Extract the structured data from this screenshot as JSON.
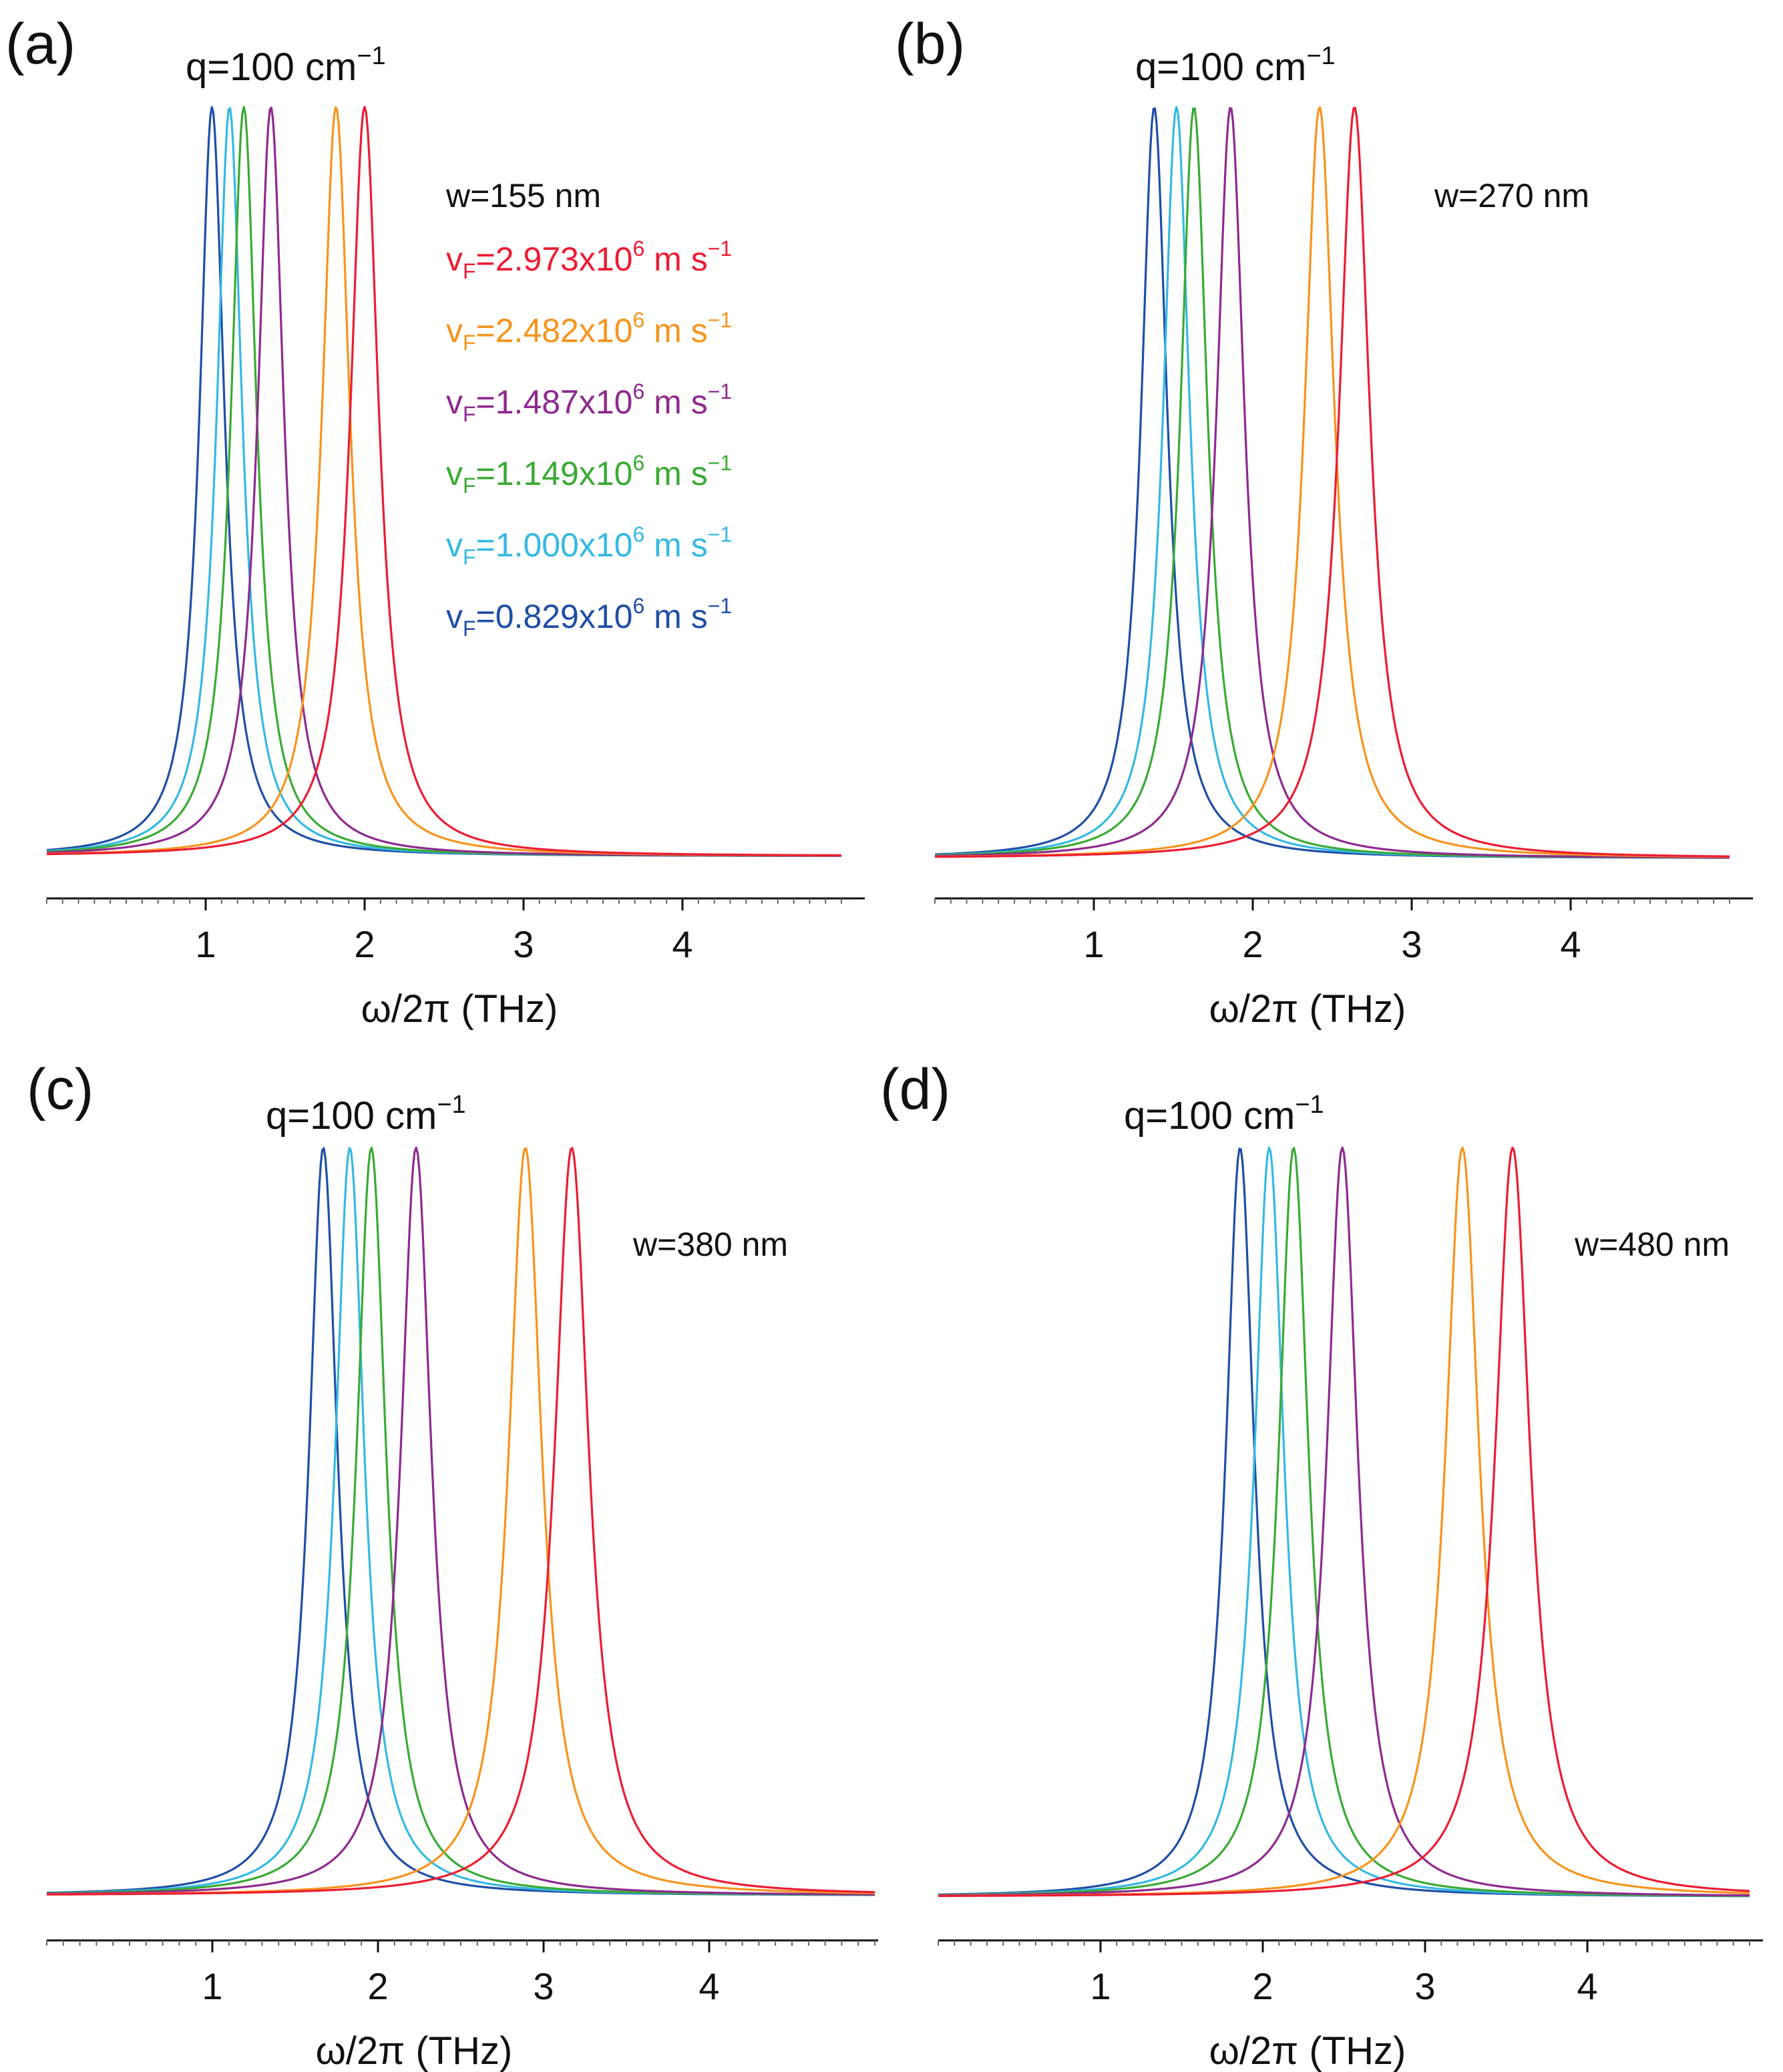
{
  "chart_data": [
    {
      "type": "line",
      "panel_label": "(a)",
      "annotation": "q=100 cm",
      "annotation_sup": "−1",
      "width_label": "w=155 nm",
      "xlabel": "ω/2π (THz)",
      "ylabel": "",
      "xlim": [
        0,
        5
      ],
      "xticks": [
        1,
        2,
        3,
        4
      ],
      "series": [
        {
          "name": "vF=0.829x10^6 m s^-1",
          "peak_thz": 1.04
        },
        {
          "name": "vF=1.000x10^6 m s^-1",
          "peak_thz": 1.15
        },
        {
          "name": "vF=1.149x10^6 m s^-1",
          "peak_thz": 1.24
        },
        {
          "name": "vF=1.487x10^6 m s^-1",
          "peak_thz": 1.41
        },
        {
          "name": "vF=2.482x10^6 m s^-1",
          "peak_thz": 1.82
        },
        {
          "name": "vF=2.973x10^6 m s^-1",
          "peak_thz": 2.0
        }
      ],
      "legend": [
        {
          "pre": "v",
          "sub": "F",
          "mid": "=2.973x10",
          "sup1": "6",
          "post": " m s",
          "sup2": "−1",
          "color_key": "red"
        },
        {
          "pre": "v",
          "sub": "F",
          "mid": "=2.482x10",
          "sup1": "6",
          "post": " m s",
          "sup2": "−1",
          "color_key": "orange"
        },
        {
          "pre": "v",
          "sub": "F",
          "mid": "=1.487x10",
          "sup1": "6",
          "post": " m s",
          "sup2": "−1",
          "color_key": "purple"
        },
        {
          "pre": "v",
          "sub": "F",
          "mid": "=1.149x10",
          "sup1": "6",
          "post": " m s",
          "sup2": "−1",
          "color_key": "green"
        },
        {
          "pre": "v",
          "sub": "F",
          "mid": "=1.000x10",
          "sup1": "6",
          "post": " m s",
          "sup2": "−1",
          "color_key": "cyan"
        },
        {
          "pre": "v",
          "sub": "F",
          "mid": "=0.829x10",
          "sup1": "6",
          "post": " m s",
          "sup2": "−1",
          "color_key": "blue"
        }
      ]
    },
    {
      "type": "line",
      "panel_label": "(b)",
      "annotation": "q=100 cm",
      "annotation_sup": "−1",
      "width_label": "w=270 nm",
      "xlabel": "ω/2π (THz)",
      "ylabel": "",
      "xlim": [
        0,
        5
      ],
      "xticks": [
        1,
        2,
        3,
        4
      ],
      "series": [
        {
          "name": "vF=0.829x10^6 m s^-1",
          "peak_thz": 1.38
        },
        {
          "name": "vF=1.000x10^6 m s^-1",
          "peak_thz": 1.52
        },
        {
          "name": "vF=1.149x10^6 m s^-1",
          "peak_thz": 1.63
        },
        {
          "name": "vF=1.487x10^6 m s^-1",
          "peak_thz": 1.86
        },
        {
          "name": "vF=2.482x10^6 m s^-1",
          "peak_thz": 2.42
        },
        {
          "name": "vF=2.973x10^6 m s^-1",
          "peak_thz": 2.64
        }
      ]
    },
    {
      "type": "line",
      "panel_label": "(c)",
      "annotation": "q=100 cm",
      "annotation_sup": "−1",
      "width_label": "w=380 nm",
      "xlabel": "ω/2π (THz)",
      "ylabel": "",
      "xlim": [
        0,
        5
      ],
      "xticks": [
        1,
        2,
        3,
        4
      ],
      "series": [
        {
          "name": "vF=0.829x10^6 m s^-1",
          "peak_thz": 1.67
        },
        {
          "name": "vF=1.000x10^6 m s^-1",
          "peak_thz": 1.83
        },
        {
          "name": "vF=1.149x10^6 m s^-1",
          "peak_thz": 1.96
        },
        {
          "name": "vF=1.487x10^6 m s^-1",
          "peak_thz": 2.23
        },
        {
          "name": "vF=2.482x10^6 m s^-1",
          "peak_thz": 2.89
        },
        {
          "name": "vF=2.973x10^6 m s^-1",
          "peak_thz": 3.17
        }
      ]
    },
    {
      "type": "line",
      "panel_label": "(d)",
      "annotation": "q=100 cm",
      "annotation_sup": "−1",
      "width_label": "w=480 nm",
      "xlabel": "ω/2π (THz)",
      "ylabel": "",
      "xlim": [
        0,
        5
      ],
      "xticks": [
        1,
        2,
        3,
        4
      ],
      "series": [
        {
          "name": "vF=0.829x10^6 m s^-1",
          "peak_thz": 1.86
        },
        {
          "name": "vF=1.000x10^6 m s^-1",
          "peak_thz": 2.04
        },
        {
          "name": "vF=1.149x10^6 m s^-1",
          "peak_thz": 2.19
        },
        {
          "name": "vF=1.487x10^6 m s^-1",
          "peak_thz": 2.49
        },
        {
          "name": "vF=2.482x10^6 m s^-1",
          "peak_thz": 3.23
        },
        {
          "name": "vF=2.973x10^6 m s^-1",
          "peak_thz": 3.54
        }
      ]
    }
  ],
  "colors": {
    "blue": "#1f4ea5",
    "cyan": "#35b9e2",
    "green": "#3aaa35",
    "purple": "#8e2a8f",
    "orange": "#f7941d",
    "red": "#ec1c33"
  }
}
